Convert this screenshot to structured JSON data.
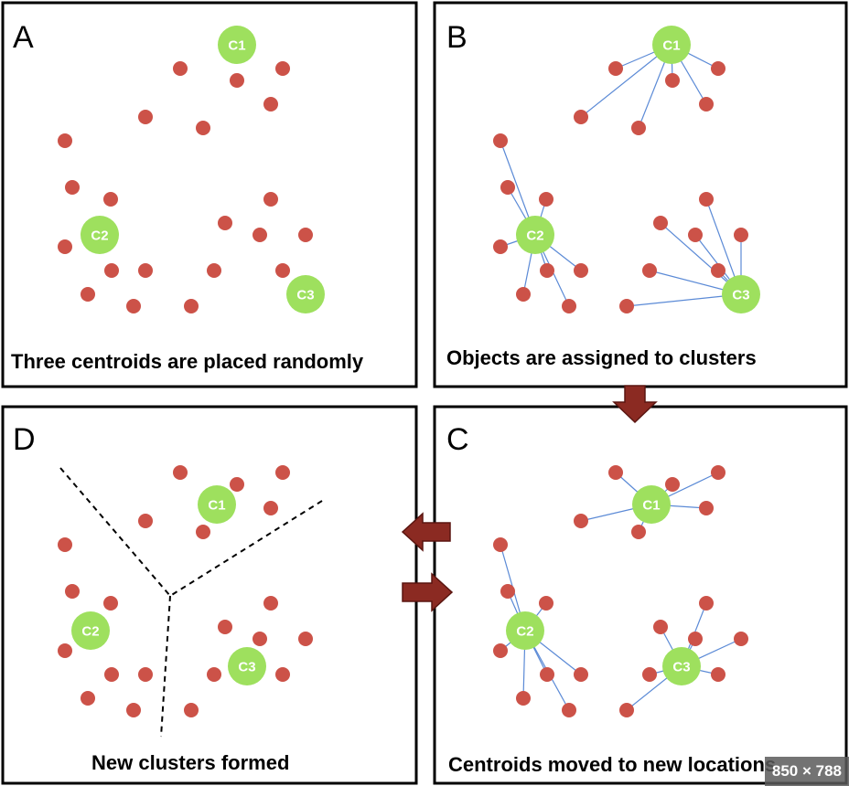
{
  "panels": {
    "a": {
      "letter": "A",
      "caption": "Three centroids are placed randomly"
    },
    "b": {
      "letter": "B",
      "caption": "Objects are assigned to clusters"
    },
    "c": {
      "letter": "C",
      "caption": "Centroids moved to new locations"
    },
    "d": {
      "letter": "D",
      "caption": "New clusters formed"
    }
  },
  "centroids": {
    "c1": "C1",
    "c2": "C2",
    "c3": "C3"
  },
  "badge": "850 × 788",
  "colors": {
    "point": "#cc5248",
    "centroid": "#9ee05e",
    "link": "#5b8ad6",
    "arrow": "#8b2a22"
  }
}
